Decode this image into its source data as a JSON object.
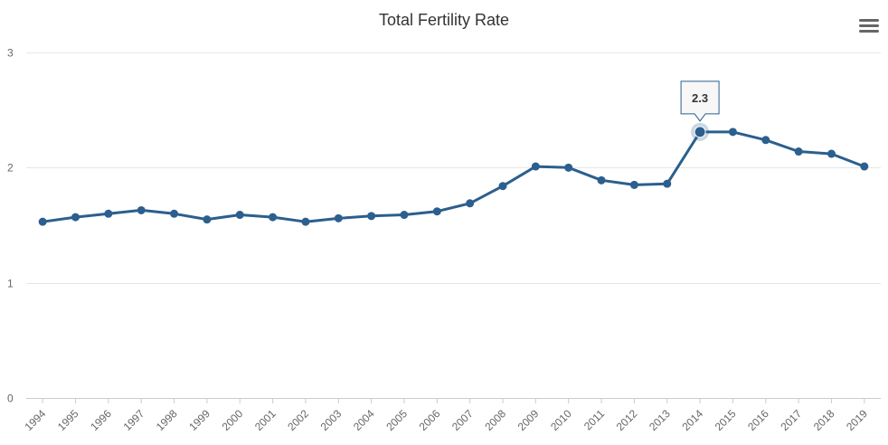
{
  "chart_data": {
    "type": "line",
    "title": "Total Fertility Rate",
    "xlabel": "",
    "ylabel": "",
    "ylim": [
      0,
      3
    ],
    "yticks": [
      0,
      1,
      2,
      3
    ],
    "grid": true,
    "series_color": "#2b5f8e",
    "categories": [
      "1994",
      "1995",
      "1996",
      "1997",
      "1998",
      "1999",
      "2000",
      "2001",
      "2002",
      "2003",
      "2004",
      "2005",
      "2006",
      "2007",
      "2008",
      "2009",
      "2010",
      "2011",
      "2012",
      "2013",
      "2014",
      "2015",
      "2016",
      "2017",
      "2018",
      "2019"
    ],
    "series": [
      {
        "name": "Total Fertility Rate",
        "values": [
          1.53,
          1.57,
          1.6,
          1.63,
          1.6,
          1.55,
          1.59,
          1.57,
          1.53,
          1.56,
          1.58,
          1.59,
          1.62,
          1.69,
          1.84,
          2.01,
          2.0,
          1.89,
          1.85,
          1.86,
          2.31,
          2.31,
          2.24,
          2.14,
          2.12,
          2.01
        ]
      }
    ],
    "tooltip": {
      "category": "2014",
      "label": "2.3"
    }
  },
  "menu": {
    "icon": "hamburger-menu-icon"
  }
}
